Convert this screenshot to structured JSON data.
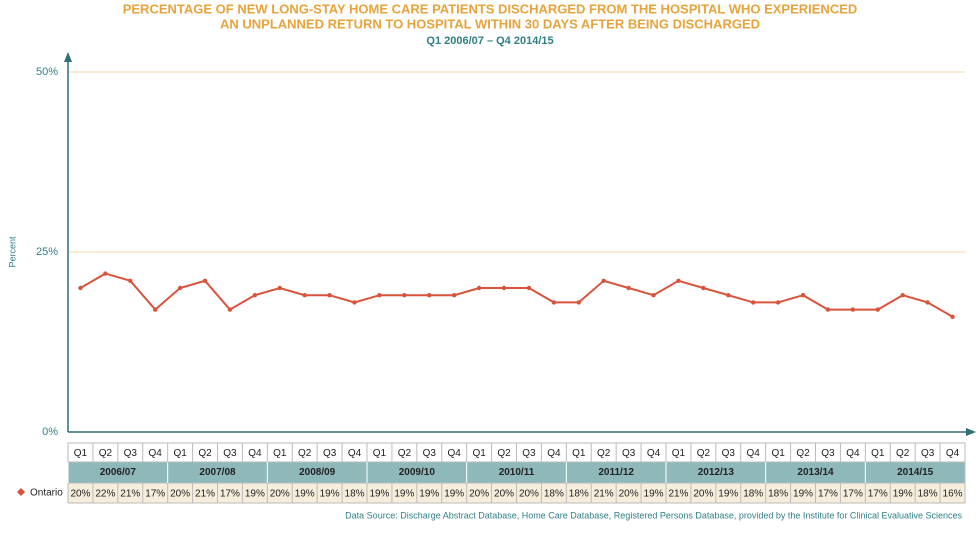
{
  "chart_data": {
    "type": "line",
    "title": [
      "PERCENTAGE OF NEW LONG-STAY HOME CARE PATIENTS DISCHARGED FROM THE HOSPITAL WHO EXPERIENCED",
      "AN UNPLANNED RETURN TO HOSPITAL WITHIN 30 DAYS AFTER BEING DISCHARGED"
    ],
    "subtitle": "Q1 2006/07 – Q4 2014/15",
    "y_label": "Percent",
    "source": "Data Source: Discharge Abstract Database, Home Care Database, Registered Persons Database, provided by the Institute for Clinical Evaluative Sciences",
    "categories": [
      "Q1",
      "Q2",
      "Q3",
      "Q4",
      "Q1",
      "Q2",
      "Q3",
      "Q4",
      "Q1",
      "Q2",
      "Q3",
      "Q4",
      "Q1",
      "Q2",
      "Q3",
      "Q4",
      "Q1",
      "Q2",
      "Q3",
      "Q4",
      "Q1",
      "Q2",
      "Q3",
      "Q4",
      "Q1",
      "Q2",
      "Q3",
      "Q4",
      "Q1",
      "Q2",
      "Q3",
      "Q4",
      "Q1",
      "Q2",
      "Q3",
      "Q4"
    ],
    "groups": [
      "2006/07",
      "2007/08",
      "2008/09",
      "2009/10",
      "2010/11",
      "2011/12",
      "2012/13",
      "2013/14",
      "2014/15"
    ],
    "series": [
      {
        "name": "Ontario",
        "color": "#d9533a",
        "values": [
          20,
          22,
          21,
          17,
          20,
          21,
          17,
          19,
          20,
          19,
          19,
          18,
          19,
          19,
          19,
          19,
          20,
          20,
          20,
          18,
          18,
          21,
          20,
          19,
          21,
          20,
          19,
          18,
          18,
          19,
          17,
          17,
          17,
          19,
          18,
          16
        ],
        "value_labels": [
          "20%",
          "22%",
          "21%",
          "17%",
          "20%",
          "21%",
          "17%",
          "19%",
          "20%",
          "19%",
          "19%",
          "18%",
          "19%",
          "19%",
          "19%",
          "19%",
          "20%",
          "20%",
          "20%",
          "18%",
          "18%",
          "21%",
          "20%",
          "19%",
          "21%",
          "20%",
          "19%",
          "18%",
          "18%",
          "19%",
          "17%",
          "17%",
          "17%",
          "19%",
          "18%",
          "16%"
        ]
      }
    ],
    "ylim": [
      0,
      50
    ],
    "yticks": [
      {
        "value": 0,
        "label": "0%"
      },
      {
        "value": 25,
        "label": "25%"
      },
      {
        "value": 50,
        "label": "50%"
      }
    ],
    "grid": true
  }
}
